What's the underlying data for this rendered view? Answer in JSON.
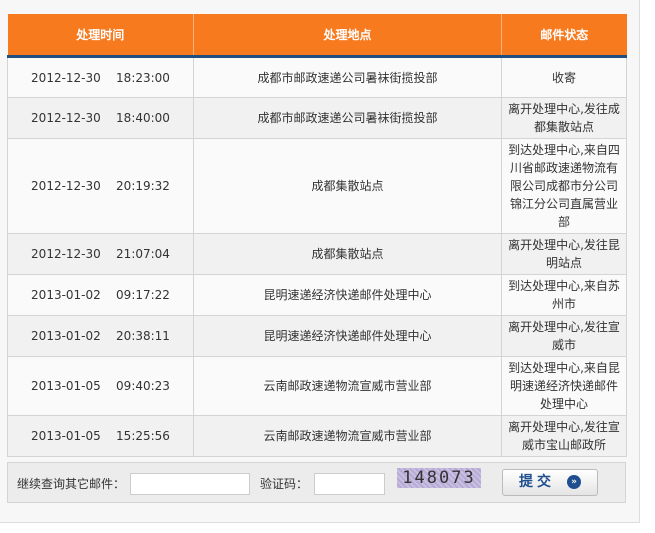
{
  "table": {
    "headers": [
      "处理时间",
      "处理地点",
      "邮件状态"
    ],
    "rows": [
      {
        "time": "2012-12-30    18:23:00",
        "location": "成都市邮政速递公司暑袜街揽投部",
        "status": "收寄"
      },
      {
        "time": "2012-12-30    18:40:00",
        "location": "成都市邮政速递公司暑袜街揽投部",
        "status": "离开处理中心,发往成都集散站点"
      },
      {
        "time": "2012-12-30    20:19:32",
        "location": "成都集散站点",
        "status": "到达处理中心,来自四川省邮政速递物流有限公司成都市分公司锦江分公司直属营业部"
      },
      {
        "time": "2012-12-30    21:07:04",
        "location": "成都集散站点",
        "status": "离开处理中心,发往昆明站点"
      },
      {
        "time": "2013-01-02    09:17:22",
        "location": "昆明速递经济快递邮件处理中心",
        "status": "到达处理中心,来自苏州市"
      },
      {
        "time": "2013-01-02    20:38:11",
        "location": "昆明速递经济快递邮件处理中心",
        "status": "离开处理中心,发往宣威市"
      },
      {
        "time": "2013-01-05    09:40:23",
        "location": "云南邮政速递物流宣威市营业部",
        "status": "到达处理中心,来自昆明速递经济快递邮件处理中心"
      },
      {
        "time": "2013-01-05    15:25:56",
        "location": "云南邮政速递物流宣威市营业部",
        "status": "离开处理中心,发往宣威市宝山邮政所"
      }
    ]
  },
  "form": {
    "query_label": "继续查询其它邮件：",
    "query_value": "",
    "captcha_label": "验证码：",
    "captcha_value": "",
    "captcha_code": "148073",
    "submit_label": "提交",
    "submit_icon": "double-chevron-right-icon"
  },
  "colors": {
    "header": "#f87a1f",
    "header_border": "#1f4f7f",
    "button_text": "#1f4f8f"
  }
}
